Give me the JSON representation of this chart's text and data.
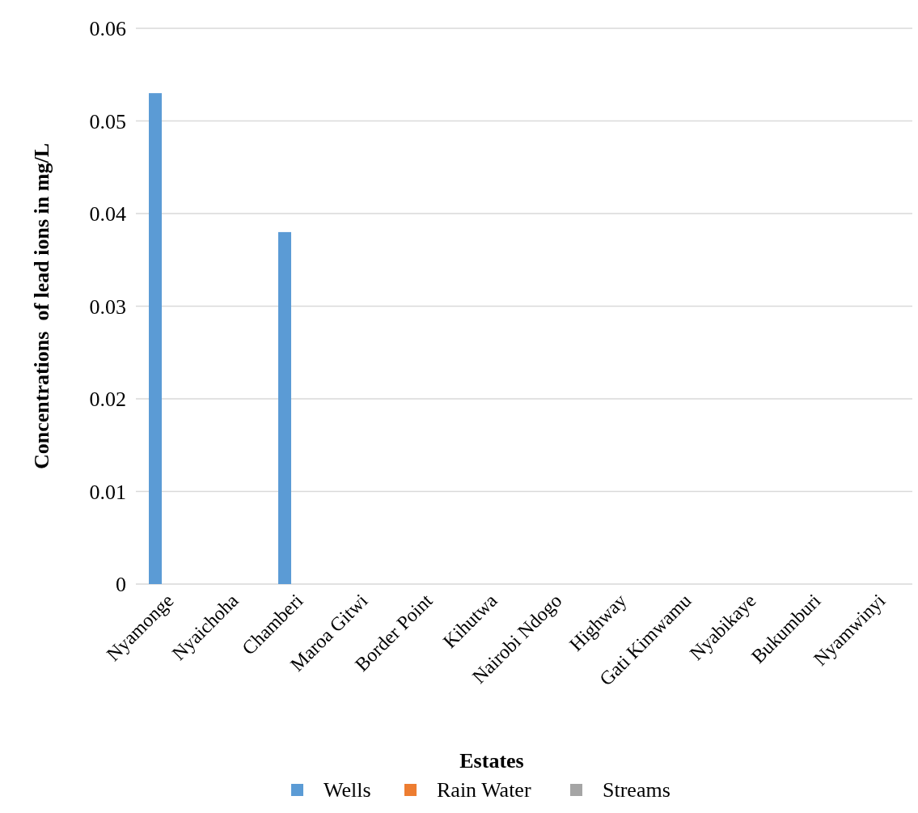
{
  "chart_data": {
    "type": "bar",
    "xlabel": "Estates",
    "ylabel": "Concentrations  of lead ions in mg/L",
    "categories": [
      "Nyamonge",
      "Nyaichoha",
      "Chamberi",
      "Maroa Gitwi",
      "Border Point",
      "Kihutwa",
      "Nairobi Ndogo",
      "Highway",
      "Gati Kimwamu",
      "Nyabikaye",
      "Bukumburi",
      "Nyamwinyi"
    ],
    "series": [
      {
        "name": "Wells",
        "color": "#5b9bd5",
        "values": [
          0.053,
          0,
          0.038,
          0,
          0,
          0,
          0,
          0,
          0,
          0,
          0,
          0
        ]
      },
      {
        "name": "Rain Water",
        "color": "#ed7d31",
        "values": [
          0,
          0,
          0,
          0,
          0,
          0,
          0,
          0,
          0,
          0,
          0,
          0
        ]
      },
      {
        "name": "Streams",
        "color": "#a5a5a5",
        "values": [
          0,
          0,
          0,
          0,
          0,
          0,
          0,
          0,
          0,
          0,
          0,
          0
        ]
      }
    ],
    "ylim": [
      0,
      0.06
    ],
    "yticks": [
      {
        "value": 0,
        "label": "0"
      },
      {
        "value": 0.01,
        "label": "0.01"
      },
      {
        "value": 0.02,
        "label": "0.02"
      },
      {
        "value": 0.03,
        "label": "0.03"
      },
      {
        "value": 0.04,
        "label": "0.04"
      },
      {
        "value": 0.05,
        "label": "0.05"
      },
      {
        "value": 0.06,
        "label": "0.06"
      }
    ],
    "grid": "y",
    "legend": "bottom"
  }
}
